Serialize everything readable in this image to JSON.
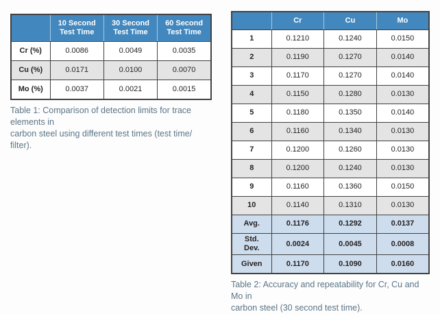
{
  "colors": {
    "page_bg": "#fdfdfd",
    "header_blue": "#4287bd",
    "header_divider": "#a6cbe3",
    "stripe_gray": "#e4e4e4",
    "summary_blue": "#cedded",
    "border": "#414042",
    "text": "#231f20",
    "caption": "#5b7486"
  },
  "table1": {
    "columns": [
      "",
      "10 Second\nTest Time",
      "30 Second\nTest Time",
      "60 Second\nTest Time"
    ],
    "rows": [
      {
        "label": "Cr (%)",
        "values": [
          "0.0086",
          "0.0049",
          "0.0035"
        ],
        "variant": "white"
      },
      {
        "label": "Cu (%)",
        "values": [
          "0.0171",
          "0.0100",
          "0.0070"
        ],
        "variant": "gray"
      },
      {
        "label": "Mo (%)",
        "values": [
          "0.0037",
          "0.0021",
          "0.0015"
        ],
        "variant": "white"
      }
    ],
    "caption": "Table 1: Comparison of detection limits for trace elements in\ncarbon steel  using different test times (test time/ filter)."
  },
  "table2": {
    "columns": [
      "",
      "Cr",
      "Cu",
      "Mo"
    ],
    "rows": [
      {
        "label": "1",
        "values": [
          "0.1210",
          "0.1240",
          "0.0150"
        ],
        "variant": "white"
      },
      {
        "label": "2",
        "values": [
          "0.1190",
          "0.1270",
          "0.0140"
        ],
        "variant": "gray"
      },
      {
        "label": "3",
        "values": [
          "0.1170",
          "0.1270",
          "0.0140"
        ],
        "variant": "white"
      },
      {
        "label": "4",
        "values": [
          "0.1150",
          "0.1280",
          "0.0130"
        ],
        "variant": "gray"
      },
      {
        "label": "5",
        "values": [
          "0.1180",
          "0.1350",
          "0.0140"
        ],
        "variant": "white"
      },
      {
        "label": "6",
        "values": [
          "0.1160",
          "0.1340",
          "0.0130"
        ],
        "variant": "gray"
      },
      {
        "label": "7",
        "values": [
          "0.1200",
          "0.1260",
          "0.0130"
        ],
        "variant": "white"
      },
      {
        "label": "8",
        "values": [
          "0.1200",
          "0.1240",
          "0.0130"
        ],
        "variant": "gray"
      },
      {
        "label": "9",
        "values": [
          "0.1160",
          "0.1360",
          "0.0150"
        ],
        "variant": "white"
      },
      {
        "label": "10",
        "values": [
          "0.1140",
          "0.1310",
          "0.0130"
        ],
        "variant": "gray"
      },
      {
        "label": "Avg.",
        "values": [
          "0.1176",
          "0.1292",
          "0.0137"
        ],
        "variant": "summary"
      },
      {
        "label": "Std.\nDev.",
        "values": [
          "0.0024",
          "0.0045",
          "0.0008"
        ],
        "variant": "summary"
      },
      {
        "label": "Given",
        "values": [
          "0.1170",
          "0.1090",
          "0.0160"
        ],
        "variant": "summary"
      }
    ],
    "caption": "Table 2: Accuracy and repeatability for Cr, Cu and Mo in\ncarbon steel (30 second test time)."
  }
}
